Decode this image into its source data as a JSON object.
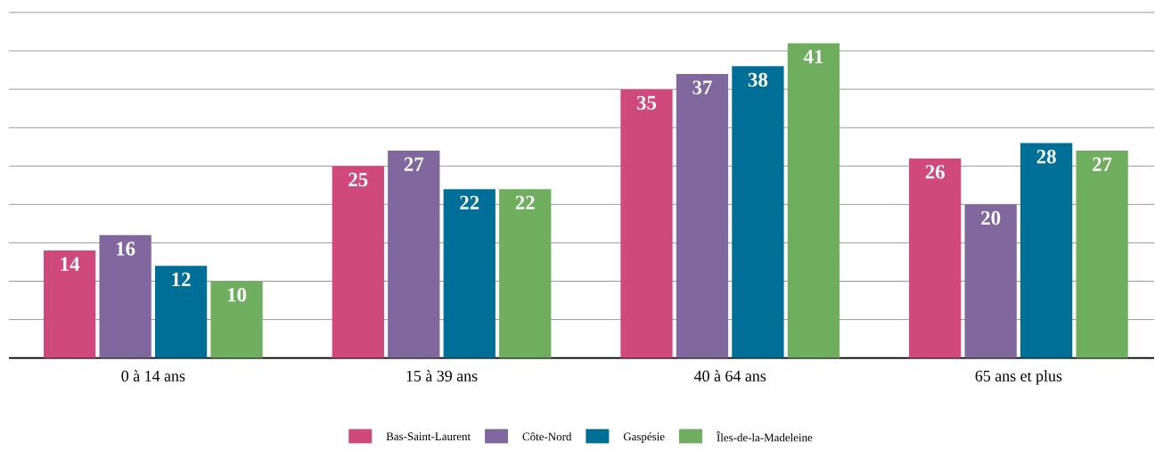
{
  "chart_data": {
    "type": "bar",
    "categories": [
      "0 à 14 ans",
      "15 à 39 ans",
      "40 à 64 ans",
      "65 ans et plus"
    ],
    "series": [
      {
        "name": "Bas-Saint-Laurent",
        "color": "#cf4a7b",
        "values": [
          14,
          25,
          35,
          26
        ]
      },
      {
        "name": "Côte-Nord",
        "color": "#80679e",
        "values": [
          16,
          27,
          37,
          20
        ]
      },
      {
        "name": "Gaspésie",
        "color": "#006f98",
        "values": [
          12,
          22,
          38,
          28
        ]
      },
      {
        "name": "Îles-de-la-Madeleine",
        "color": "#6fae5f",
        "values": [
          10,
          22,
          41,
          27
        ]
      }
    ],
    "ylim": [
      0,
      45
    ],
    "yticks": [
      {
        "value": 0,
        "label": null
      },
      {
        "value": 5,
        "label": null
      },
      {
        "value": 10,
        "label": null
      },
      {
        "value": 15,
        "label": null
      },
      {
        "value": 20,
        "label": null
      },
      {
        "value": 25,
        "label": null
      },
      {
        "value": 30,
        "label": null
      },
      {
        "value": 35,
        "label": null
      },
      {
        "value": 40,
        "label": null
      },
      {
        "value": 45,
        "label": null
      }
    ],
    "grid": "y",
    "legend": "bottom",
    "tick_labels": "x",
    "data_labels": true
  }
}
